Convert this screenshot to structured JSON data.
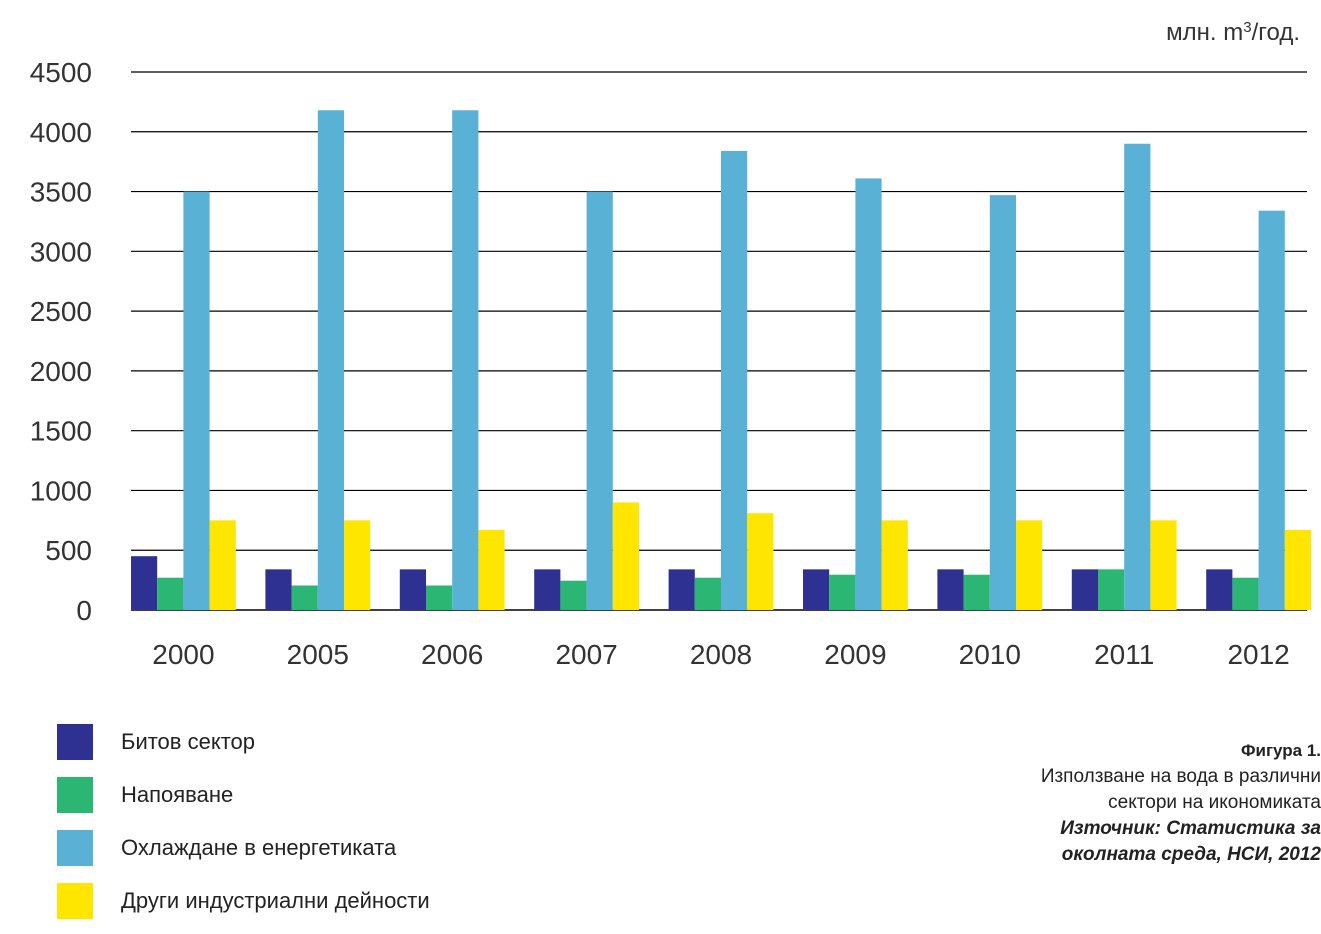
{
  "chart_data": {
    "type": "bar",
    "unit_label_prefix": "млн. m",
    "unit_label_sup": "3",
    "unit_label_suffix": "/год.",
    "categories": [
      "2000",
      "2005",
      "2006",
      "2007",
      "2008",
      "2009",
      "2010",
      "2011",
      "2012"
    ],
    "ylim": [
      0,
      4500
    ],
    "yticks": [
      0,
      500,
      1000,
      1500,
      2000,
      2500,
      3000,
      3500,
      4000,
      4500
    ],
    "grid": true,
    "legend_position": "bottom-left",
    "series": [
      {
        "name": "Битов сектор",
        "color": "#2e3192",
        "values": [
          450,
          340,
          340,
          340,
          340,
          340,
          340,
          340,
          340
        ]
      },
      {
        "name": "Напояване",
        "color": "#2bb673",
        "values": [
          270,
          205,
          205,
          245,
          270,
          295,
          295,
          340,
          270
        ]
      },
      {
        "name": "Охлаждане в енергетиката",
        "color": "#5ab1d6",
        "values": [
          3500,
          4180,
          4180,
          3500,
          3840,
          3610,
          3470,
          3900,
          3340
        ]
      },
      {
        "name": "Други индустриални дейности",
        "color": "#ffe600",
        "values": [
          750,
          750,
          670,
          900,
          810,
          750,
          750,
          750,
          670
        ]
      }
    ]
  },
  "caption": {
    "title": "Фигура 1.",
    "line1": "Използване на вода в различни",
    "line2": "сектори на икономиката",
    "source1": "Източник: Статистика за",
    "source2": "околната среда, НСИ, 2012"
  }
}
